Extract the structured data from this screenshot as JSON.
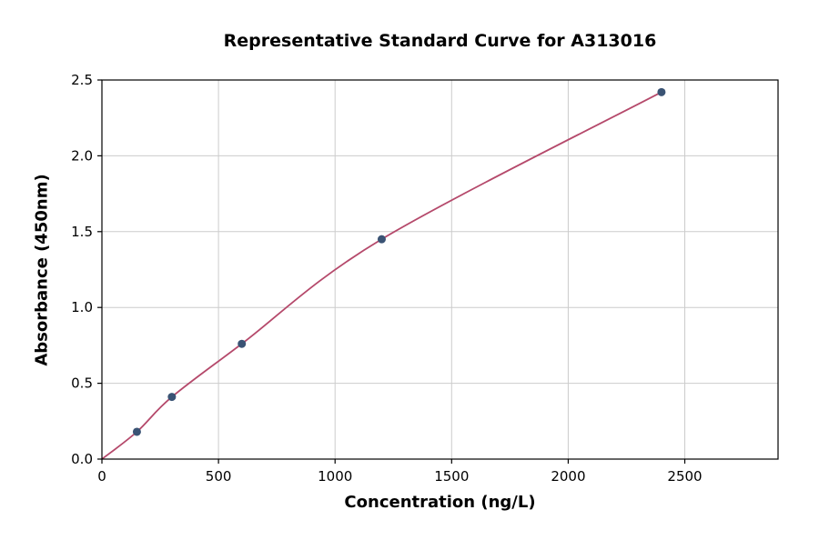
{
  "chart_data": {
    "type": "scatter",
    "title": "Representative Standard Curve for A313016",
    "xlabel": "Concentration (ng/L)",
    "ylabel": "Absorbance (450nm)",
    "xlim": [
      0,
      2900
    ],
    "ylim": [
      0,
      2.5
    ],
    "xticks": [
      0,
      500,
      1000,
      1500,
      2000,
      2500
    ],
    "xtick_labels": [
      "0",
      "500",
      "1000",
      "1500",
      "2000",
      "2500"
    ],
    "yticks": [
      0,
      0.5,
      1.0,
      1.5,
      2.0,
      2.5
    ],
    "ytick_labels": [
      "0.0",
      "0.5",
      "1.0",
      "1.5",
      "2.0",
      "2.5"
    ],
    "grid": true,
    "legend": "none",
    "points": {
      "x": [
        150,
        300,
        600,
        1200,
        2400
      ],
      "y": [
        0.18,
        0.41,
        0.76,
        1.45,
        2.42
      ]
    },
    "fit_curve": {
      "x": [
        0,
        150,
        300,
        600,
        1200,
        2400
      ],
      "y": [
        0.0,
        0.18,
        0.41,
        0.76,
        1.45,
        2.42
      ]
    },
    "colors": {
      "marker": "#3a5374",
      "line": "#b5496b",
      "grid": "#cccccc",
      "spine": "#000000",
      "background": "#ffffff"
    }
  }
}
